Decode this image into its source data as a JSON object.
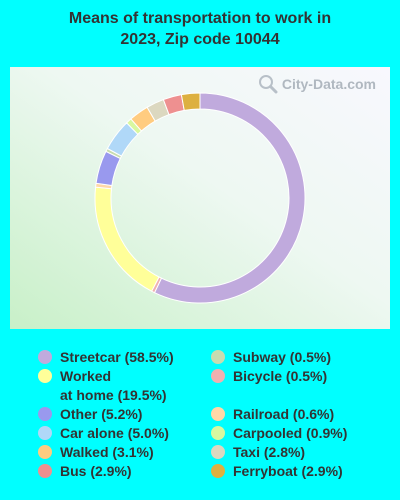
{
  "title": {
    "line1": "Means of transportation to work in",
    "line2": "2023, Zip code 10044"
  },
  "watermark": {
    "text": "City-Data.com",
    "icon": "magnifier-globe-icon"
  },
  "chart_data": {
    "type": "pie",
    "donut": true,
    "unit": "%",
    "categories": [
      "Streetcar",
      "Bicycle",
      "Worked at home",
      "Railroad",
      "Other",
      "Subway",
      "Car alone",
      "Carpooled",
      "Walked",
      "Taxi",
      "Bus",
      "Ferryboat"
    ],
    "values": [
      58.5,
      0.5,
      19.5,
      0.6,
      5.2,
      0.5,
      5.0,
      0.9,
      3.1,
      2.8,
      2.9,
      2.9
    ],
    "colors": [
      "#c0aadd",
      "#f0b0b0",
      "#ffff99",
      "#ffd8a8",
      "#9999ee",
      "#c8dcb0",
      "#b0d8f8",
      "#d8f8a0",
      "#ffcc80",
      "#dcd8c0",
      "#ee9090",
      "#ddb040"
    ],
    "start": "top",
    "direction": "clockwise"
  },
  "legend": {
    "left": [
      {
        "label": "Streetcar (58.5%)",
        "color": "#c0aadd"
      },
      {
        "label": "Worked\nat home (19.5%)",
        "color": "#ffff99"
      },
      {
        "label": "Other (5.2%)",
        "color": "#9999ee"
      },
      {
        "label": "Car alone (5.0%)",
        "color": "#b0d8f8"
      },
      {
        "label": "Walked (3.1%)",
        "color": "#ffcc80"
      },
      {
        "label": "Bus (2.9%)",
        "color": "#ee9090"
      }
    ],
    "right": [
      {
        "label": "Subway (0.5%)",
        "color": "#c8dcb0"
      },
      {
        "label": "Bicycle (0.5%)",
        "color": "#f0b0b0"
      },
      {
        "label": "Railroad (0.6%)",
        "color": "#ffd8a8"
      },
      {
        "label": "Carpooled (0.9%)",
        "color": "#d8f8a0"
      },
      {
        "label": "Taxi (2.8%)",
        "color": "#dcd8c0"
      },
      {
        "label": "Ferryboat (2.9%)",
        "color": "#ddb040"
      }
    ]
  }
}
